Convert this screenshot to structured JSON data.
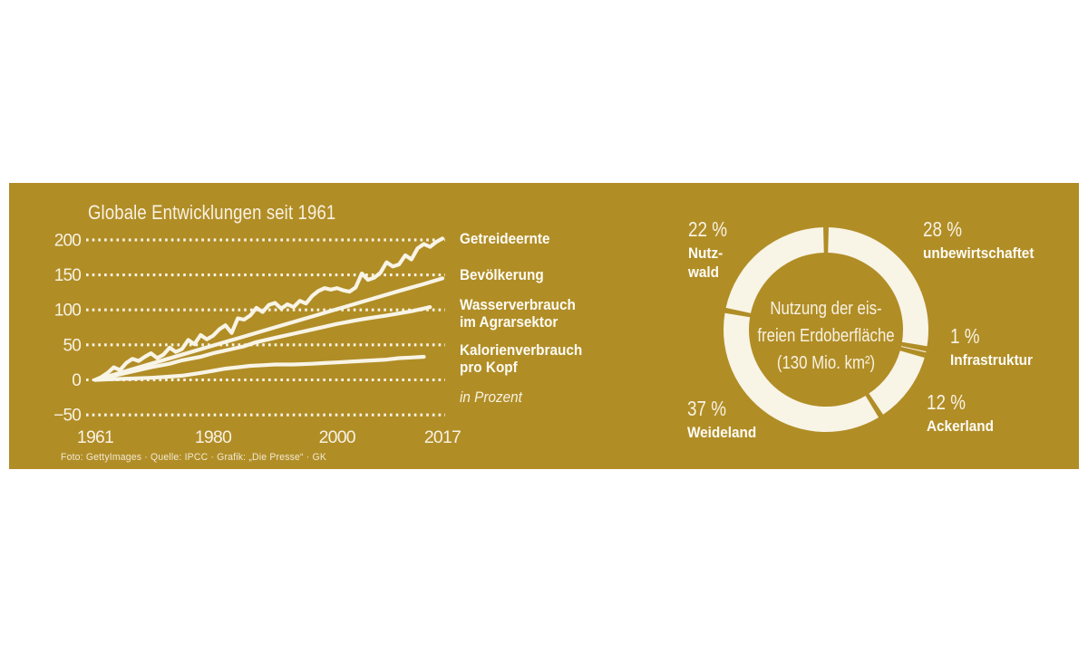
{
  "colors": {
    "page_bg": "#ffffff",
    "panel_bg": "#b18d26",
    "ink_light": "#f7f2e2",
    "ink_bold": "#fdfcf5",
    "line_stroke": "#f8f4e6",
    "donut_ring": "#f8f4e6"
  },
  "credit": "Foto: GettyImages · Quelle: IPCC · Grafik: „Die Presse“ · GK",
  "chart_data": [
    {
      "type": "line",
      "title": "Globale Entwicklungen seit 1961",
      "unit_note": "in Prozent",
      "xlim": [
        1961,
        2017
      ],
      "ylim": [
        -50,
        200
      ],
      "grid": "dotted-horizontal",
      "legend_position": "right",
      "y_ticks": [
        200,
        150,
        100,
        50,
        0,
        -50
      ],
      "y_tick_labels": [
        "200",
        "150",
        "100",
        "50",
        "0",
        "−50"
      ],
      "x_ticks": [
        1961,
        1980,
        2000,
        2017
      ],
      "x_tick_labels": [
        "1961",
        "1980",
        "2000",
        "2017"
      ],
      "series": [
        {
          "name": "Getreideernte",
          "label_lines": [
            "Getreideernte"
          ],
          "points": [
            [
              1961,
              0
            ],
            [
              1962,
              4
            ],
            [
              1963,
              10
            ],
            [
              1964,
              18
            ],
            [
              1965,
              14
            ],
            [
              1966,
              24
            ],
            [
              1967,
              30
            ],
            [
              1968,
              27
            ],
            [
              1969,
              33
            ],
            [
              1970,
              38
            ],
            [
              1971,
              31
            ],
            [
              1972,
              36
            ],
            [
              1973,
              46
            ],
            [
              1974,
              40
            ],
            [
              1975,
              44
            ],
            [
              1976,
              57
            ],
            [
              1977,
              51
            ],
            [
              1978,
              64
            ],
            [
              1979,
              58
            ],
            [
              1980,
              63
            ],
            [
              1981,
              72
            ],
            [
              1982,
              78
            ],
            [
              1983,
              67
            ],
            [
              1984,
              88
            ],
            [
              1985,
              86
            ],
            [
              1986,
              92
            ],
            [
              1987,
              103
            ],
            [
              1988,
              97
            ],
            [
              1989,
              107
            ],
            [
              1990,
              110
            ],
            [
              1991,
              102
            ],
            [
              1992,
              108
            ],
            [
              1993,
              104
            ],
            [
              1994,
              113
            ],
            [
              1995,
              109
            ],
            [
              1996,
              120
            ],
            [
              1997,
              127
            ],
            [
              1998,
              131
            ],
            [
              1999,
              129
            ],
            [
              2000,
              131
            ],
            [
              2001,
              128
            ],
            [
              2002,
              126
            ],
            [
              2003,
              132
            ],
            [
              2004,
              152
            ],
            [
              2005,
              143
            ],
            [
              2006,
              146
            ],
            [
              2007,
              153
            ],
            [
              2008,
              168
            ],
            [
              2009,
              162
            ],
            [
              2010,
              165
            ],
            [
              2011,
              178
            ],
            [
              2012,
              172
            ],
            [
              2013,
              188
            ],
            [
              2014,
              194
            ],
            [
              2015,
              190
            ],
            [
              2016,
              197
            ],
            [
              2017,
              202
            ]
          ]
        },
        {
          "name": "Bevölkerung",
          "label_lines": [
            "Bevölkerung"
          ],
          "points": [
            [
              1961,
              0
            ],
            [
              1965,
              10
            ],
            [
              1970,
              23
            ],
            [
              1975,
              36
            ],
            [
              1980,
              49
            ],
            [
              1985,
              62
            ],
            [
              1990,
              75
            ],
            [
              1995,
              88
            ],
            [
              2000,
              101
            ],
            [
              2005,
              114
            ],
            [
              2010,
              127
            ],
            [
              2014,
              137
            ],
            [
              2017,
              145
            ]
          ]
        },
        {
          "name": "Wasserverbrauch im Agrarsektor",
          "label_lines": [
            "Wasserverbrauch",
            "im Agrarsektor"
          ],
          "points": [
            [
              1961,
              0
            ],
            [
              1963,
              4
            ],
            [
              1965,
              8
            ],
            [
              1968,
              14
            ],
            [
              1970,
              18
            ],
            [
              1973,
              23
            ],
            [
              1975,
              28
            ],
            [
              1978,
              33
            ],
            [
              1980,
              38
            ],
            [
              1983,
              44
            ],
            [
              1985,
              48
            ],
            [
              1987,
              54
            ],
            [
              1990,
              60
            ],
            [
              1993,
              66
            ],
            [
              1995,
              70
            ],
            [
              1998,
              76
            ],
            [
              2000,
              80
            ],
            [
              2003,
              85
            ],
            [
              2005,
              88
            ],
            [
              2008,
              92
            ],
            [
              2010,
              95
            ],
            [
              2012,
              98
            ],
            [
              2014,
              102
            ],
            [
              2015,
              104
            ]
          ]
        },
        {
          "name": "Kalorienverbrauch pro Kopf",
          "label_lines": [
            "Kalorienverbrauch",
            "pro Kopf"
          ],
          "points": [
            [
              1961,
              0
            ],
            [
              1964,
              1
            ],
            [
              1967,
              2
            ],
            [
              1970,
              3
            ],
            [
              1972,
              4
            ],
            [
              1975,
              6
            ],
            [
              1978,
              10
            ],
            [
              1980,
              13
            ],
            [
              1982,
              16
            ],
            [
              1984,
              18
            ],
            [
              1986,
              20
            ],
            [
              1988,
              21
            ],
            [
              1990,
              22
            ],
            [
              1993,
              22
            ],
            [
              1996,
              23
            ],
            [
              1998,
              24
            ],
            [
              2000,
              25
            ],
            [
              2002,
              26
            ],
            [
              2004,
              27
            ],
            [
              2006,
              28
            ],
            [
              2008,
              29
            ],
            [
              2010,
              31
            ],
            [
              2012,
              32
            ],
            [
              2014,
              33
            ]
          ]
        }
      ]
    },
    {
      "type": "pie",
      "style": "donut",
      "center_lines": [
        "Nutzung der eis-",
        "freien Erdoberfläche",
        "(130 Mio. km²)"
      ],
      "start_angle_deg": 0,
      "direction": "clockwise",
      "slices": [
        {
          "value": 28,
          "pct_label": "28 %",
          "label": "unbewirtschaftet",
          "label_lines": [
            "unbewirtschaftet"
          ]
        },
        {
          "value": 1,
          "pct_label": "1 %",
          "label": "Infrastruktur",
          "label_lines": [
            "Infrastruktur"
          ]
        },
        {
          "value": 12,
          "pct_label": "12 %",
          "label": "Ackerland",
          "label_lines": [
            "Ackerland"
          ]
        },
        {
          "value": 37,
          "pct_label": "37 %",
          "label": "Weideland",
          "label_lines": [
            "Weideland"
          ]
        },
        {
          "value": 22,
          "pct_label": "22 %",
          "label": "Nutzwald",
          "label_lines": [
            "Nutz-",
            "wald"
          ]
        }
      ]
    }
  ]
}
